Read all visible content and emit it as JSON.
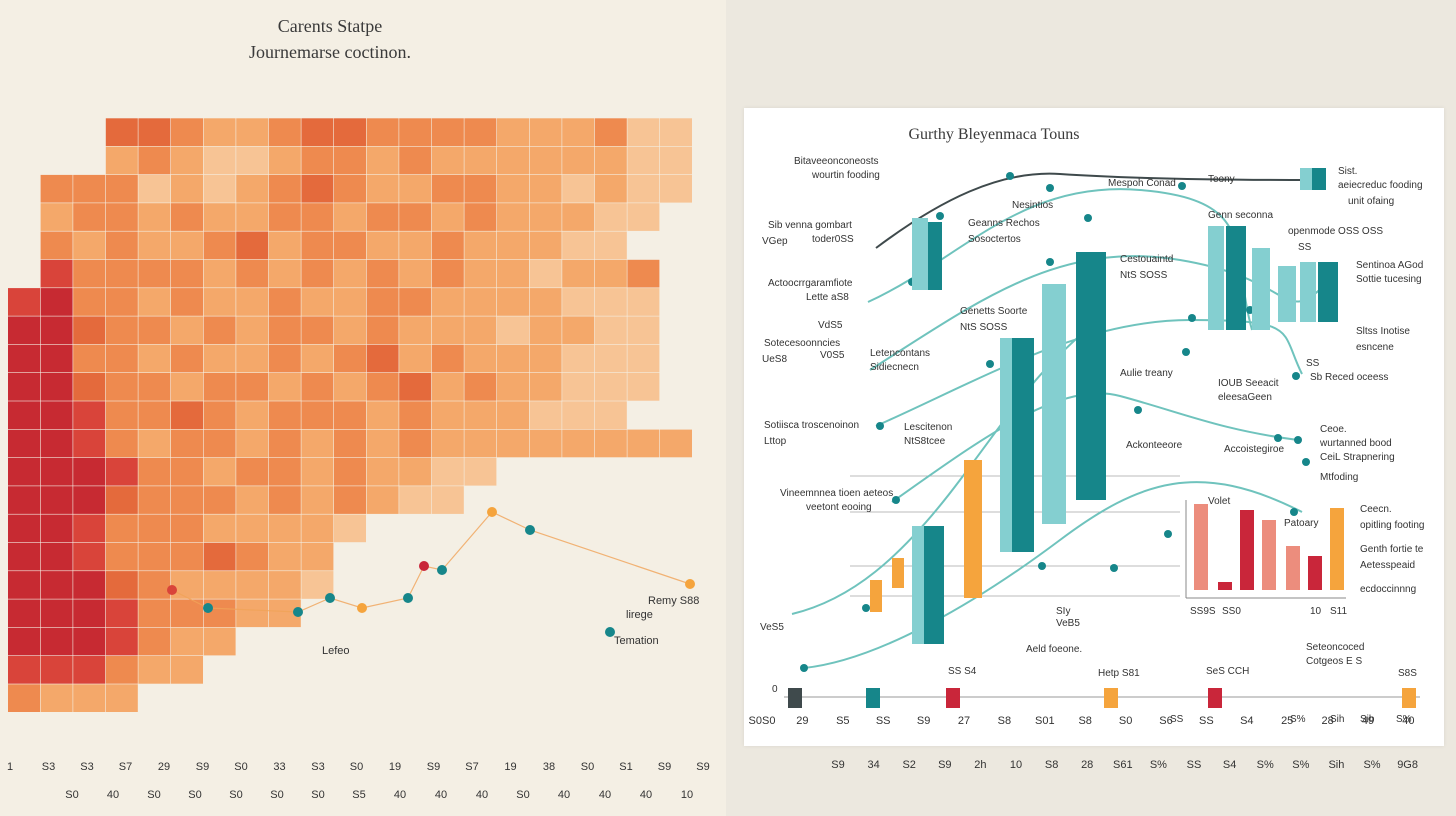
{
  "colors": {
    "heat": [
      "#f9e2c5",
      "#f7c495",
      "#f4a86a",
      "#ee8a4f",
      "#e46a3c",
      "#d9443a",
      "#c72a32",
      "#b41c2b"
    ],
    "teal": "#16868a",
    "teal_light": "#84cfd0",
    "orange": "#f5a43d",
    "red": "#c9263a",
    "salmon": "#ec8d7d",
    "line": "#6fc3bd",
    "dark_line": "#3f4a4c",
    "scatter_line": "#f0a357"
  },
  "left_chart": {
    "title": "Carents Statpe",
    "subtitle": "Journemarse coctinon.",
    "bottom_ticks_row1": [
      "1",
      "S3",
      "S3",
      "S7",
      "29",
      "S9",
      "S0",
      "33",
      "S3",
      "S0",
      "19",
      "S9",
      "S7",
      "19",
      "38",
      "S0",
      "S1",
      "S9",
      "S9"
    ],
    "bottom_ticks_row2": [
      "S0",
      "40",
      "S0",
      "S0",
      "S0",
      "S0",
      "S0",
      "S5",
      "40",
      "40",
      "40",
      "S0",
      "40",
      "40",
      "40",
      "10"
    ],
    "scatter_labels": [
      "Lefeo",
      "Remy S88",
      "lirege",
      "Temation"
    ]
  },
  "chart_data": [
    {
      "type": "heatmap",
      "title": "Carents Statpe",
      "subtitle": "Journemarse coctinon.",
      "rows": 22,
      "cols": 22,
      "values": [
        [
          0,
          0,
          0,
          0,
          0,
          0,
          0,
          0,
          0,
          0,
          0,
          0,
          0,
          0,
          0,
          0,
          0,
          0,
          0,
          0,
          0,
          0
        ],
        [
          0,
          0,
          0,
          4,
          4,
          3,
          2,
          2,
          3,
          4,
          4,
          3,
          3,
          3,
          3,
          2,
          2,
          2,
          3,
          1,
          1,
          0
        ],
        [
          0,
          0,
          0,
          2,
          3,
          2,
          1,
          1,
          2,
          3,
          3,
          2,
          3,
          2,
          2,
          2,
          2,
          2,
          2,
          1,
          1,
          0
        ],
        [
          0,
          3,
          3,
          3,
          1,
          2,
          1,
          2,
          3,
          4,
          3,
          2,
          2,
          3,
          3,
          2,
          2,
          1,
          2,
          1,
          1,
          0
        ],
        [
          0,
          2,
          3,
          3,
          2,
          3,
          2,
          2,
          3,
          3,
          2,
          3,
          3,
          2,
          3,
          2,
          2,
          2,
          1,
          1,
          0,
          0
        ],
        [
          0,
          3,
          2,
          3,
          2,
          2,
          3,
          4,
          2,
          3,
          3,
          2,
          2,
          3,
          2,
          2,
          2,
          1,
          1,
          0,
          0,
          0
        ],
        [
          0,
          5,
          3,
          3,
          3,
          3,
          2,
          3,
          2,
          3,
          2,
          3,
          2,
          3,
          2,
          2,
          1,
          2,
          2,
          3,
          0,
          0
        ],
        [
          5,
          6,
          3,
          3,
          2,
          3,
          2,
          2,
          3,
          2,
          2,
          3,
          3,
          2,
          2,
          2,
          2,
          1,
          1,
          1,
          0,
          0
        ],
        [
          6,
          6,
          4,
          3,
          3,
          2,
          3,
          2,
          3,
          3,
          2,
          3,
          2,
          2,
          2,
          1,
          2,
          2,
          1,
          1,
          0,
          0
        ],
        [
          6,
          6,
          3,
          3,
          2,
          3,
          2,
          2,
          3,
          2,
          3,
          4,
          2,
          3,
          2,
          2,
          2,
          1,
          1,
          1,
          0,
          0
        ],
        [
          6,
          6,
          4,
          3,
          3,
          2,
          3,
          3,
          2,
          3,
          2,
          3,
          4,
          2,
          3,
          2,
          2,
          1,
          1,
          1,
          0,
          0
        ],
        [
          6,
          6,
          5,
          3,
          3,
          4,
          3,
          2,
          3,
          3,
          3,
          2,
          3,
          2,
          2,
          2,
          1,
          1,
          1,
          0,
          0,
          0
        ],
        [
          6,
          6,
          5,
          3,
          2,
          3,
          3,
          2,
          3,
          2,
          3,
          2,
          3,
          2,
          2,
          2,
          2,
          2,
          2,
          2,
          2,
          0
        ],
        [
          6,
          6,
          6,
          5,
          3,
          3,
          2,
          3,
          3,
          2,
          3,
          2,
          2,
          1,
          1,
          0,
          0,
          0,
          0,
          0,
          0,
          0
        ],
        [
          6,
          6,
          6,
          4,
          3,
          3,
          3,
          2,
          3,
          2,
          3,
          2,
          1,
          1,
          0,
          0,
          0,
          0,
          0,
          0,
          0,
          0
        ],
        [
          6,
          6,
          5,
          3,
          3,
          3,
          2,
          2,
          2,
          2,
          1,
          0,
          0,
          0,
          0,
          0,
          0,
          0,
          0,
          0,
          0,
          0
        ],
        [
          6,
          6,
          5,
          3,
          3,
          3,
          4,
          3,
          2,
          2,
          0,
          0,
          0,
          0,
          0,
          0,
          0,
          0,
          0,
          0,
          0,
          0
        ],
        [
          6,
          6,
          6,
          4,
          3,
          2,
          2,
          2,
          2,
          1,
          0,
          0,
          0,
          0,
          0,
          0,
          0,
          0,
          0,
          0,
          0,
          0
        ],
        [
          6,
          6,
          6,
          5,
          3,
          3,
          3,
          2,
          2,
          0,
          0,
          0,
          0,
          0,
          0,
          0,
          0,
          0,
          0,
          0,
          0,
          0
        ],
        [
          6,
          6,
          6,
          5,
          3,
          2,
          2,
          0,
          0,
          0,
          0,
          0,
          0,
          0,
          0,
          0,
          0,
          0,
          0,
          0,
          0,
          0
        ],
        [
          5,
          5,
          5,
          3,
          2,
          2,
          0,
          0,
          0,
          0,
          0,
          0,
          0,
          0,
          0,
          0,
          0,
          0,
          0,
          0,
          0,
          0
        ],
        [
          3,
          2,
          2,
          2,
          0,
          0,
          0,
          0,
          0,
          0,
          0,
          0,
          0,
          0,
          0,
          0,
          0,
          0,
          0,
          0,
          0,
          0
        ]
      ]
    },
    {
      "type": "bar",
      "title": "Gurthy Bleyenmaca Touns",
      "series": [
        {
          "values": [
            22,
            12,
            34,
            28,
            18,
            46,
            30,
            16,
            22,
            14,
            30,
            20
          ]
        },
        {
          "values": [
            16,
            24,
            40,
            52,
            60,
            34,
            18,
            26,
            38,
            42,
            10,
            48
          ]
        }
      ],
      "small_bars": [
        34,
        26,
        18,
        40,
        30,
        22,
        16,
        28
      ],
      "right_bars": [
        30,
        14,
        36,
        30,
        20,
        14,
        46
      ],
      "lines": [
        [
          8,
          14,
          24,
          30,
          44,
          58,
          66,
          72,
          76,
          78,
          80
        ],
        [
          10,
          22,
          36,
          46,
          52,
          56,
          58,
          60,
          62,
          64,
          66
        ],
        [
          4,
          10,
          18,
          26,
          40,
          54,
          62,
          68,
          70,
          70,
          68
        ],
        [
          6,
          18,
          30,
          44,
          56,
          62,
          58,
          50,
          44,
          36,
          30
        ],
        [
          2,
          6,
          12,
          24,
          38,
          50,
          60,
          64,
          62,
          58,
          52
        ]
      ],
      "x_ticks": [
        "S0S0",
        "29",
        "S5",
        "SS",
        "S9",
        "27",
        "S8",
        "S01",
        "S8",
        "S0",
        "S6",
        "SS",
        "S4",
        "25",
        "28",
        "49",
        "40"
      ],
      "outer_ticks": [
        "S9",
        "34",
        "S2",
        "S9",
        "2h",
        "10",
        "S8",
        "28",
        "S61",
        "S%",
        "SS",
        "S4",
        "S%",
        "S%",
        "Sih",
        "S%",
        "9G8"
      ]
    }
  ],
  "right_chart": {
    "title": "Gurthy Bleyenmaca Touns",
    "annotations": [
      {
        "text": "Bitaveeonconeosts"
      },
      {
        "text": "wourtin fooding"
      },
      {
        "text": "Mespoh Conad"
      },
      {
        "text": "Teony"
      },
      {
        "text": "Sist."
      },
      {
        "text": "aeiecreduc fooding"
      },
      {
        "text": "unit ofaing"
      },
      {
        "text": "Nesintios"
      },
      {
        "text": "Sib venna gombart"
      },
      {
        "text": "VGep"
      },
      {
        "text": "toder0SS"
      },
      {
        "text": "Geanns Rechos"
      },
      {
        "text": "Sosoctertos"
      },
      {
        "text": "Genn seconna"
      },
      {
        "text": "openmode OSS OSS"
      },
      {
        "text": "SS"
      },
      {
        "text": "Actoocrrgaramfiote"
      },
      {
        "text": "Lette aS8"
      },
      {
        "text": "Cestouaintd"
      },
      {
        "text": "NtS SOSS"
      },
      {
        "text": "Sentinoa AGod"
      },
      {
        "text": "Sottie tucesing"
      },
      {
        "text": "Genetts Soorte"
      },
      {
        "text": "NtS SOSS"
      },
      {
        "text": "VdS5"
      },
      {
        "text": "Sotecesoonncies"
      },
      {
        "text": "UeS8"
      },
      {
        "text": "V0S5"
      },
      {
        "text": "Letencontans"
      },
      {
        "text": "Sidiecnecn"
      },
      {
        "text": "Sltss Inotise"
      },
      {
        "text": "esncene"
      },
      {
        "text": "SS"
      },
      {
        "text": "Aulie treany"
      },
      {
        "text": "IOUB Seeacit"
      },
      {
        "text": "eleesaGeen"
      },
      {
        "text": "Sb Reced oceess"
      },
      {
        "text": "Sotiisca troscenoinon"
      },
      {
        "text": "Lttop"
      },
      {
        "text": "Lescitenon"
      },
      {
        "text": "NtS8tcee"
      },
      {
        "text": "Ackonteeore"
      },
      {
        "text": "Accoistegiroe"
      },
      {
        "text": "Ceoe."
      },
      {
        "text": "wurtanned bood"
      },
      {
        "text": "CeiL Strapnering"
      },
      {
        "text": "Mtfoding"
      },
      {
        "text": "Vineemnnea tioen aeteos"
      },
      {
        "text": "veetont eooing"
      },
      {
        "text": "Volet"
      },
      {
        "text": "Ceecn."
      },
      {
        "text": "opitling footing"
      },
      {
        "text": "Patoary"
      },
      {
        "text": "Genth fortie te"
      },
      {
        "text": "Aetesspeaid"
      },
      {
        "text": "ecdoccinnng"
      },
      {
        "text": "SS9S"
      },
      {
        "text": "SS0"
      },
      {
        "text": "10"
      },
      {
        "text": "S11"
      },
      {
        "text": "SIy"
      },
      {
        "text": "VeS5"
      },
      {
        "text": "VeB5"
      },
      {
        "text": "Aeld foeone."
      },
      {
        "text": "Seteoncoced"
      },
      {
        "text": "Cotgeos E S"
      },
      {
        "text": "SS S4"
      },
      {
        "text": "Hetp S81"
      },
      {
        "text": "SeS CCH"
      },
      {
        "text": "S8S"
      },
      {
        "text": "0"
      },
      {
        "text": "Sih"
      },
      {
        "text": "Sib"
      },
      {
        "text": "S%"
      },
      {
        "text": "SS"
      },
      {
        "text": "S%"
      }
    ]
  }
}
